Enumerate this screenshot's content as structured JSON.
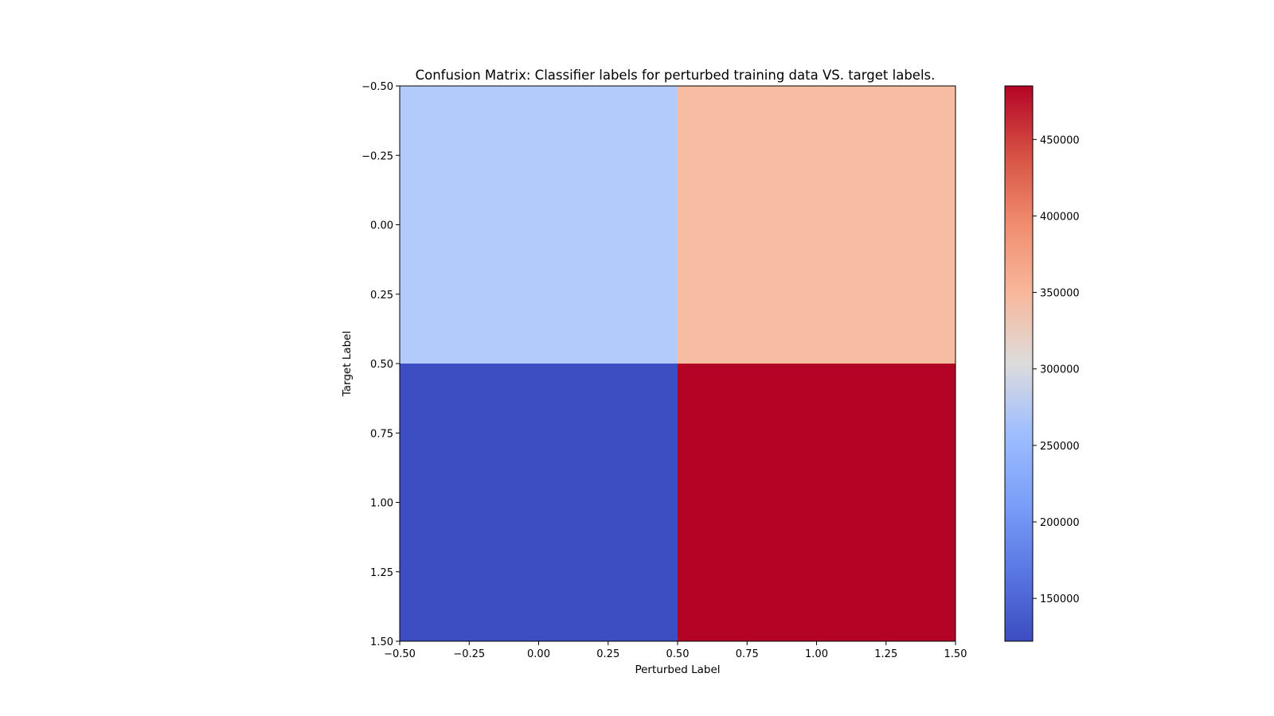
{
  "chart_data": {
    "type": "heatmap",
    "title": "Confusion Matrix: Classifier labels for perturbed training data VS. target labels.",
    "xlabel": "Perturbed Label",
    "ylabel": "Target Label",
    "xlim": [
      -0.5,
      1.5
    ],
    "ylim": [
      1.5,
      -0.5
    ],
    "x_ticks": [
      -0.5,
      -0.25,
      0.0,
      0.25,
      0.5,
      0.75,
      1.0,
      1.25,
      1.5
    ],
    "x_tick_labels": [
      "−0.50",
      "−0.25",
      "0.00",
      "0.25",
      "0.50",
      "0.75",
      "1.00",
      "1.25",
      "1.50"
    ],
    "y_ticks": [
      -0.5,
      -0.25,
      0.0,
      0.25,
      0.5,
      0.75,
      1.0,
      1.25,
      1.5
    ],
    "y_tick_labels": [
      "−0.50",
      "−0.25",
      "0.00",
      "0.25",
      "0.50",
      "0.75",
      "1.00",
      "1.25",
      "1.50"
    ],
    "matrix": [
      [
        235000,
        365000
      ],
      [
        122000,
        485000
      ]
    ],
    "colormap": "coolwarm",
    "colorbar": {
      "vmin": 122000,
      "vmax": 485000,
      "ticks": [
        150000,
        200000,
        250000,
        300000,
        350000,
        400000,
        450000
      ],
      "tick_labels": [
        "150000",
        "200000",
        "250000",
        "300000",
        "350000",
        "400000",
        "450000"
      ]
    },
    "cell_colors": [
      [
        "#b2cbfb",
        "#f6bda2"
      ],
      [
        "#3c4ec2",
        "#b40426"
      ]
    ],
    "grid": false
  }
}
